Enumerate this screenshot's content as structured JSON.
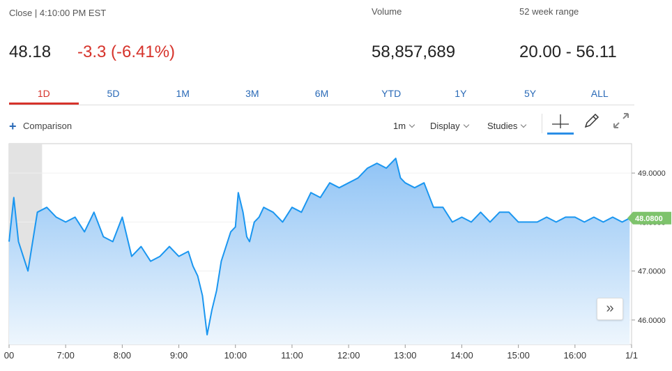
{
  "header": {
    "close_label": "Close | 4:10:00 PM EST",
    "price": "48.18",
    "change": "-3.3 (-6.41%)",
    "volume_label": "Volume",
    "volume_value": "58,857,689",
    "range_label": "52 week range",
    "range_value": "20.00 - 56.11"
  },
  "tabs": [
    {
      "label": "1D",
      "active": true
    },
    {
      "label": "5D"
    },
    {
      "label": "1M"
    },
    {
      "label": "3M"
    },
    {
      "label": "6M"
    },
    {
      "label": "YTD"
    },
    {
      "label": "1Y"
    },
    {
      "label": "5Y"
    },
    {
      "label": "ALL"
    }
  ],
  "toolbar": {
    "comparison": "Comparison",
    "interval": "1m",
    "display": "Display",
    "studies": "Studies"
  },
  "nav_button": "»",
  "colors": {
    "line": "#1a96f0",
    "fill_top": "#8fc3f5",
    "fill_bottom": "#eef6fd",
    "negative": "#d6332b",
    "last_price_tag": "#7ec36c",
    "tab_link": "#2a6ab7"
  },
  "chart_data": {
    "type": "area",
    "x_tick_labels": [
      "00",
      "7:00",
      "8:00",
      "9:00",
      "10:00",
      "11:00",
      "12:00",
      "13:00",
      "14:00",
      "15:00",
      "16:00",
      "1/1"
    ],
    "y_tick_labels": [
      "49.0000",
      "48.0000",
      "47.0000",
      "46.0000"
    ],
    "last_price_label": "48.0800",
    "ylim": [
      45.5,
      49.6
    ],
    "pre_market_shaded": true,
    "series": [
      {
        "x": [
          "06:00",
          "06:05",
          "06:10",
          "06:20",
          "06:30",
          "06:40",
          "06:50",
          "07:00",
          "07:10",
          "07:20",
          "07:30",
          "07:40",
          "07:50",
          "08:00",
          "08:10",
          "08:20",
          "08:30",
          "08:40",
          "08:50",
          "09:00",
          "09:10",
          "09:15",
          "09:20",
          "09:25",
          "09:30",
          "09:33",
          "09:35",
          "09:40",
          "09:45",
          "09:50",
          "09:55",
          "10:00",
          "10:03",
          "10:08",
          "10:12",
          "10:15",
          "10:20",
          "10:25",
          "10:30",
          "10:40",
          "10:50",
          "11:00",
          "11:10",
          "11:20",
          "11:30",
          "11:40",
          "11:50",
          "12:00",
          "12:10",
          "12:20",
          "12:30",
          "12:40",
          "12:50",
          "12:55",
          "13:00",
          "13:10",
          "13:20",
          "13:30",
          "13:40",
          "13:50",
          "14:00",
          "14:10",
          "14:20",
          "14:30",
          "14:40",
          "14:50",
          "15:00",
          "15:10",
          "15:20",
          "15:30",
          "15:40",
          "15:50",
          "16:00",
          "16:10",
          "16:20",
          "16:30",
          "16:40",
          "16:50",
          "16:58"
        ],
        "y": [
          47.6,
          48.5,
          47.6,
          47.0,
          48.2,
          48.3,
          48.1,
          48.0,
          48.1,
          47.8,
          48.2,
          47.7,
          47.6,
          48.1,
          47.3,
          47.5,
          47.2,
          47.3,
          47.5,
          47.3,
          47.4,
          47.1,
          46.9,
          46.5,
          45.7,
          46.0,
          46.2,
          46.6,
          47.2,
          47.5,
          47.8,
          47.9,
          48.6,
          48.2,
          47.7,
          47.6,
          48.0,
          48.1,
          48.3,
          48.2,
          48.0,
          48.3,
          48.2,
          48.6,
          48.5,
          48.8,
          48.7,
          48.8,
          48.9,
          49.1,
          49.2,
          49.1,
          49.3,
          48.9,
          48.8,
          48.7,
          48.8,
          48.3,
          48.3,
          48.0,
          48.1,
          48.0,
          48.2,
          48.0,
          48.2,
          48.2,
          48.0,
          48.0,
          48.0,
          48.1,
          48.0,
          48.1,
          48.1,
          48.0,
          48.1,
          48.0,
          48.1,
          48.0,
          48.08
        ]
      }
    ]
  }
}
